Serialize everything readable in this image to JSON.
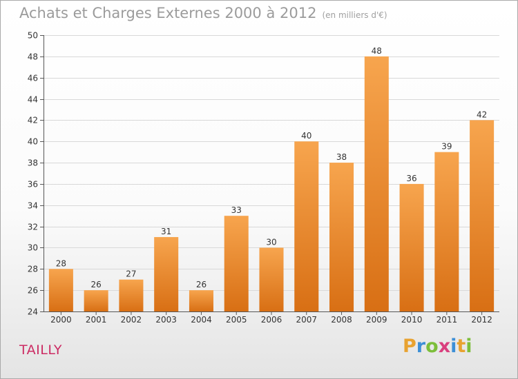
{
  "header": {
    "title": "Achats et Charges Externes 2000 à 2012",
    "unit": "(en milliers d'€)"
  },
  "footer": {
    "commune": "TAILLY",
    "logo": "Proxiti"
  },
  "colors": {
    "bar_light": "#f7a54e",
    "bar_dark": "#d86f14",
    "axis": "#555555",
    "grid": "#d8d8d8",
    "title": "#9b9b9b",
    "commune": "#cc2b63"
  },
  "chart_data": {
    "type": "bar",
    "title": "Achats et Charges Externes 2000 à 2012",
    "subtitle": "(en milliers d'€)",
    "categories": [
      "2000",
      "2001",
      "2002",
      "2003",
      "2004",
      "2005",
      "2006",
      "2007",
      "2008",
      "2009",
      "2010",
      "2011",
      "2012"
    ],
    "values": [
      28,
      26,
      27,
      31,
      26,
      33,
      30,
      40,
      38,
      48,
      36,
      39,
      42
    ],
    "ylim": [
      24,
      50
    ],
    "yticks": [
      24,
      26,
      28,
      30,
      32,
      34,
      36,
      38,
      40,
      42,
      44,
      46,
      48,
      50
    ],
    "grid": true,
    "data_labels": true,
    "legend": "none"
  }
}
